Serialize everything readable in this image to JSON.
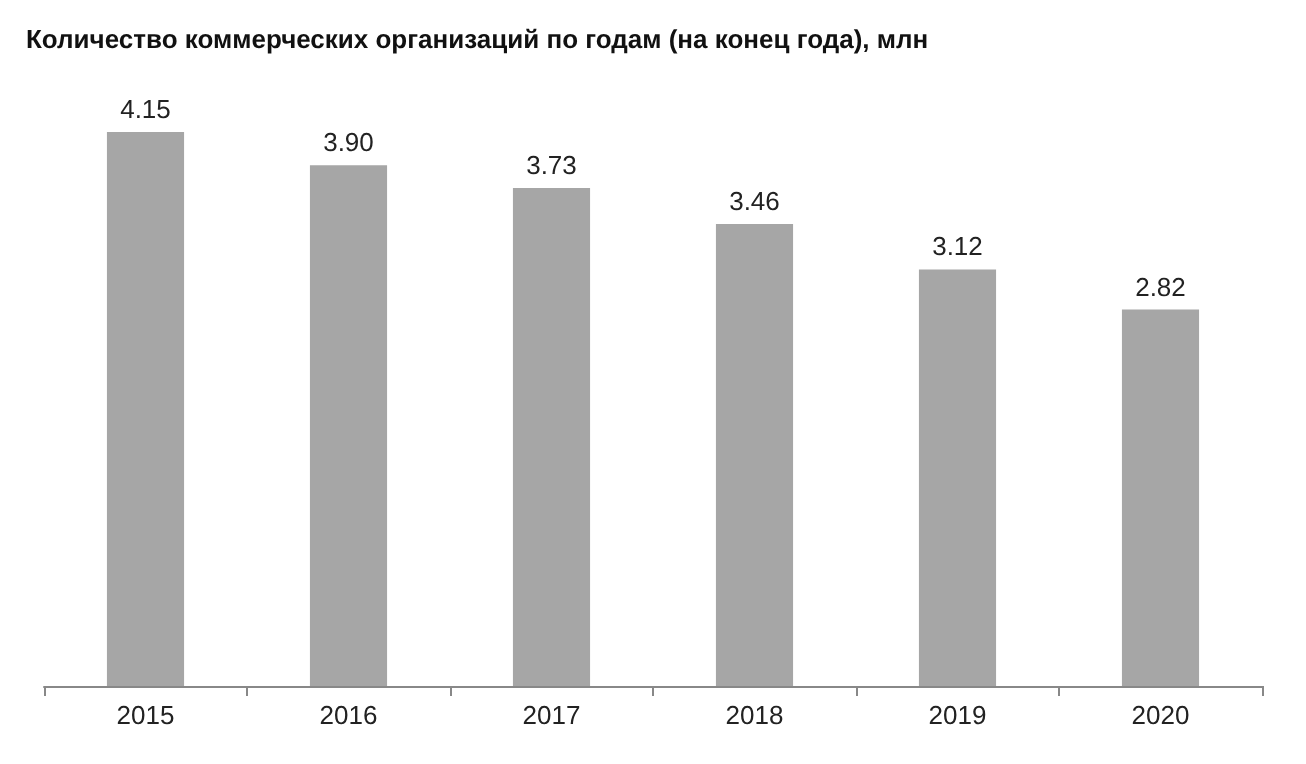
{
  "chart_data": {
    "type": "bar",
    "title": "Количество коммерческих организаций по годам (на конец года), млн",
    "categories": [
      "2015",
      "2016",
      "2017",
      "2018",
      "2019",
      "2020"
    ],
    "values": [
      4.15,
      3.9,
      3.73,
      3.46,
      3.12,
      2.82
    ],
    "value_labels": [
      "4.15",
      "3.90",
      "3.73",
      "3.46",
      "3.12",
      "2.82"
    ],
    "color": "#a6a6a6",
    "tick_labels": "x"
  }
}
